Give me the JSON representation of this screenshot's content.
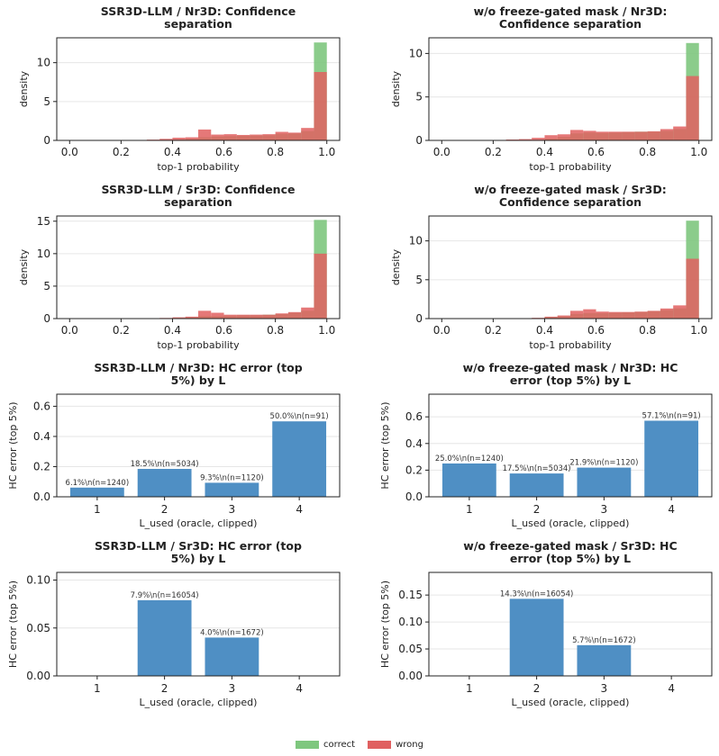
{
  "chart_data": [
    {
      "type": "histogram",
      "title": "SSR3D-LLM / Nr3D: Confidence separation",
      "xlabel": "top-1 probability",
      "ylabel": "density",
      "xlim": [
        0,
        1
      ],
      "ylim": [
        0,
        13.2
      ],
      "xticks": [
        0.0,
        0.2,
        0.4,
        0.6,
        0.8,
        1.0
      ],
      "yticks": [
        0,
        5,
        10
      ],
      "bin_edges": [
        0.0,
        0.05,
        0.1,
        0.15,
        0.2,
        0.25,
        0.3,
        0.35,
        0.4,
        0.45,
        0.5,
        0.55,
        0.6,
        0.65,
        0.7,
        0.75,
        0.8,
        0.85,
        0.9,
        0.95,
        1.0
      ],
      "series": [
        {
          "name": "correct",
          "values": [
            0,
            0,
            0,
            0,
            0,
            0,
            0,
            0,
            0.1,
            0.2,
            0.4,
            0.5,
            0.55,
            0.6,
            0.62,
            0.65,
            0.85,
            0.9,
            1.2,
            12.6
          ]
        },
        {
          "name": "wrong",
          "values": [
            0,
            0,
            0,
            0,
            0,
            0.05,
            0.1,
            0.2,
            0.35,
            0.4,
            1.4,
            0.75,
            0.8,
            0.7,
            0.75,
            0.8,
            1.1,
            1.0,
            1.6,
            8.8
          ]
        }
      ]
    },
    {
      "type": "histogram",
      "title": "w/o freeze-gated mask / Nr3D: Confidence separation",
      "xlabel": "top-1 probability",
      "ylabel": "density",
      "xlim": [
        0,
        1
      ],
      "ylim": [
        0,
        11.8
      ],
      "xticks": [
        0.0,
        0.2,
        0.4,
        0.6,
        0.8,
        1.0
      ],
      "yticks": [
        0,
        5,
        10
      ],
      "bin_edges": [
        0.0,
        0.05,
        0.1,
        0.15,
        0.2,
        0.25,
        0.3,
        0.35,
        0.4,
        0.45,
        0.5,
        0.55,
        0.6,
        0.65,
        0.7,
        0.75,
        0.8,
        0.85,
        0.9,
        0.95,
        1.0
      ],
      "series": [
        {
          "name": "correct",
          "values": [
            0,
            0,
            0,
            0,
            0,
            0,
            0,
            0,
            0.2,
            0.4,
            0.8,
            0.9,
            0.85,
            0.9,
            0.95,
            1.0,
            1.0,
            1.1,
            1.3,
            11.2
          ]
        },
        {
          "name": "wrong",
          "values": [
            0,
            0,
            0,
            0,
            0,
            0.1,
            0.15,
            0.3,
            0.6,
            0.7,
            1.2,
            1.1,
            1.0,
            1.0,
            1.0,
            1.0,
            1.05,
            1.3,
            1.6,
            7.4
          ]
        }
      ]
    },
    {
      "type": "histogram",
      "title": "SSR3D-LLM / Sr3D: Confidence separation",
      "xlabel": "top-1 probability",
      "ylabel": "density",
      "xlim": [
        0,
        1
      ],
      "ylim": [
        0,
        15.8
      ],
      "xticks": [
        0.0,
        0.2,
        0.4,
        0.6,
        0.8,
        1.0
      ],
      "yticks": [
        0,
        5,
        10,
        15
      ],
      "bin_edges": [
        0.0,
        0.05,
        0.1,
        0.15,
        0.2,
        0.25,
        0.3,
        0.35,
        0.4,
        0.45,
        0.5,
        0.55,
        0.6,
        0.65,
        0.7,
        0.75,
        0.8,
        0.85,
        0.9,
        0.95,
        1.0
      ],
      "series": [
        {
          "name": "correct",
          "values": [
            0,
            0,
            0,
            0,
            0,
            0,
            0,
            0,
            0.1,
            0.2,
            0.4,
            0.4,
            0.45,
            0.5,
            0.5,
            0.6,
            0.7,
            0.9,
            1.2,
            15.2
          ]
        },
        {
          "name": "wrong",
          "values": [
            0,
            0,
            0,
            0,
            0,
            0,
            0,
            0.1,
            0.2,
            0.3,
            1.2,
            0.9,
            0.6,
            0.6,
            0.6,
            0.6,
            0.8,
            1.0,
            1.7,
            10.0
          ]
        }
      ]
    },
    {
      "type": "histogram",
      "title": "w/o freeze-gated mask / Sr3D: Confidence separation",
      "xlabel": "top-1 probability",
      "ylabel": "density",
      "xlim": [
        0,
        1
      ],
      "ylim": [
        0,
        13.2
      ],
      "xticks": [
        0.0,
        0.2,
        0.4,
        0.6,
        0.8,
        1.0
      ],
      "yticks": [
        0,
        5,
        10
      ],
      "bin_edges": [
        0.0,
        0.05,
        0.1,
        0.15,
        0.2,
        0.25,
        0.3,
        0.35,
        0.4,
        0.45,
        0.5,
        0.55,
        0.6,
        0.65,
        0.7,
        0.75,
        0.8,
        0.85,
        0.9,
        0.95,
        1.0
      ],
      "series": [
        {
          "name": "correct",
          "values": [
            0,
            0,
            0,
            0,
            0,
            0,
            0,
            0,
            0.2,
            0.3,
            0.6,
            0.7,
            0.7,
            0.75,
            0.8,
            0.85,
            0.95,
            1.1,
            1.3,
            12.6
          ]
        },
        {
          "name": "wrong",
          "values": [
            0,
            0,
            0,
            0,
            0,
            0,
            0,
            0.1,
            0.25,
            0.4,
            1.0,
            1.2,
            0.9,
            0.85,
            0.85,
            0.9,
            1.0,
            1.3,
            1.7,
            7.7
          ]
        }
      ]
    },
    {
      "type": "bar",
      "title": "SSR3D-LLM / Nr3D: HC error (top 5%) by L",
      "xlabel": "L_used (oracle, clipped)",
      "ylabel": "HC error (top 5%)",
      "categories": [
        "1",
        "2",
        "3",
        "4"
      ],
      "values": [
        0.061,
        0.185,
        0.093,
        0.5
      ],
      "data_labels": [
        "6.1%\\n(n=1240)",
        "18.5%\\n(n=5034)",
        "9.3%\\n(n=1120)",
        "50.0%\\n(n=91)"
      ],
      "ylim": [
        0,
        0.68
      ],
      "yticks": [
        0.0,
        0.2,
        0.4,
        0.6
      ],
      "ytick_labels": [
        "0.0",
        "0.2",
        "0.4",
        "0.6"
      ]
    },
    {
      "type": "bar",
      "title": "w/o freeze-gated mask / Nr3D: HC error (top 5%) by L",
      "xlabel": "L_used (oracle, clipped)",
      "ylabel": "HC error (top 5%)",
      "categories": [
        "1",
        "2",
        "3",
        "4"
      ],
      "values": [
        0.25,
        0.175,
        0.219,
        0.571
      ],
      "data_labels": [
        "25.0%\\n(n=1240)",
        "17.5%\\n(n=5034)",
        "21.9%\\n(n=1120)",
        "57.1%\\n(n=91)"
      ],
      "ylim": [
        0,
        0.77
      ],
      "yticks": [
        0.0,
        0.2,
        0.4,
        0.6
      ],
      "ytick_labels": [
        "0.0",
        "0.2",
        "0.4",
        "0.6"
      ]
    },
    {
      "type": "bar",
      "title": "SSR3D-LLM / Sr3D: HC error (top 5%) by L",
      "xlabel": "L_used (oracle, clipped)",
      "ylabel": "HC error (top 5%)",
      "categories": [
        "1",
        "2",
        "3",
        "4"
      ],
      "values": [
        0,
        0.079,
        0.04,
        0
      ],
      "data_labels": [
        "",
        "7.9%\\n(n=16054)",
        "4.0%\\n(n=1672)",
        ""
      ],
      "ylim": [
        0,
        0.108
      ],
      "yticks": [
        0.0,
        0.05,
        0.1
      ],
      "ytick_labels": [
        "0.00",
        "0.05",
        "0.10"
      ]
    },
    {
      "type": "bar",
      "title": "w/o freeze-gated mask / Sr3D: HC error (top 5%) by L",
      "xlabel": "L_used (oracle, clipped)",
      "ylabel": "HC error (top 5%)",
      "categories": [
        "1",
        "2",
        "3",
        "4"
      ],
      "values": [
        0,
        0.143,
        0.057,
        0
      ],
      "data_labels": [
        "",
        "14.3%\\n(n=16054)",
        "5.7%\\n(n=1672)",
        ""
      ],
      "ylim": [
        0,
        0.192
      ],
      "yticks": [
        0.0,
        0.05,
        0.1,
        0.15
      ],
      "ytick_labels": [
        "0.00",
        "0.05",
        "0.10",
        "0.15"
      ]
    }
  ],
  "legend": {
    "correct_label": "correct",
    "wrong_label": "wrong",
    "correct_color": "#7ec77e",
    "wrong_color": "#e06060"
  },
  "colors": {
    "bar": "#4f8fc4",
    "correct": "#7ec77e",
    "wrong": "#e06060",
    "grid": "#e6e6e6",
    "axis": "#222222"
  }
}
